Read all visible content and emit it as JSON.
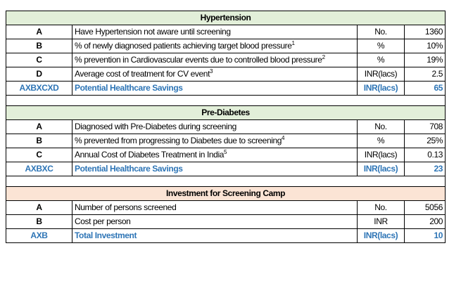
{
  "sections": [
    {
      "title": "Hypertension",
      "rows": [
        {
          "code": "A",
          "desc": "Have Hypertension not aware until screening",
          "sup": "",
          "unit": "No.",
          "value": "1360"
        },
        {
          "code": "B",
          "desc": "% of newly diagnosed patients achieving target blood pressure",
          "sup": "1",
          "unit": "%",
          "value": "10%"
        },
        {
          "code": "C",
          "desc": "% prevention in Cardiovascular events due to controlled blood pressure",
          "sup": "2",
          "unit": "%",
          "value": "19%"
        },
        {
          "code": "D",
          "desc": "Average cost of treatment for CV event",
          "sup": "3",
          "unit": "INR(lacs)",
          "value": "2.5"
        }
      ],
      "total": {
        "code": "AXBXCXD",
        "desc": "Potential Healthcare Savings",
        "unit": "INR(lacs)",
        "value": "65"
      }
    },
    {
      "title": "Pre-Diabetes",
      "rows": [
        {
          "code": "A",
          "desc": "Diagnosed with Pre-Diabetes during screening",
          "sup": "",
          "unit": "No.",
          "value": "708"
        },
        {
          "code": "B",
          "desc": "% prevented from progressing to Diabetes due to screening",
          "sup": "4",
          "unit": "%",
          "value": "25%"
        },
        {
          "code": "C",
          "desc": "Annual Cost of Diabetes Treatment in India",
          "sup": "5",
          "unit": "INR(lacs)",
          "value": "0.13"
        }
      ],
      "total": {
        "code": "AXBXC",
        "desc": "Potential Healthcare Savings",
        "unit": "INR(lacs)",
        "value": "23"
      }
    },
    {
      "title": "Investment for Screening Camp",
      "rows": [
        {
          "code": "A",
          "desc": "Number of persons screened",
          "sup": "",
          "unit": "No.",
          "value": "5056"
        },
        {
          "code": "B",
          "desc": "Cost per person",
          "sup": "",
          "unit": "INR",
          "value": "200"
        }
      ],
      "total": {
        "code": "AXB",
        "desc": "Total Investment",
        "unit": "INR(lacs)",
        "value": "10"
      }
    }
  ],
  "colors": {
    "section_green": "#e2efd9",
    "section_peach": "#fbe4d5",
    "total_blue": "#2e75b6"
  }
}
